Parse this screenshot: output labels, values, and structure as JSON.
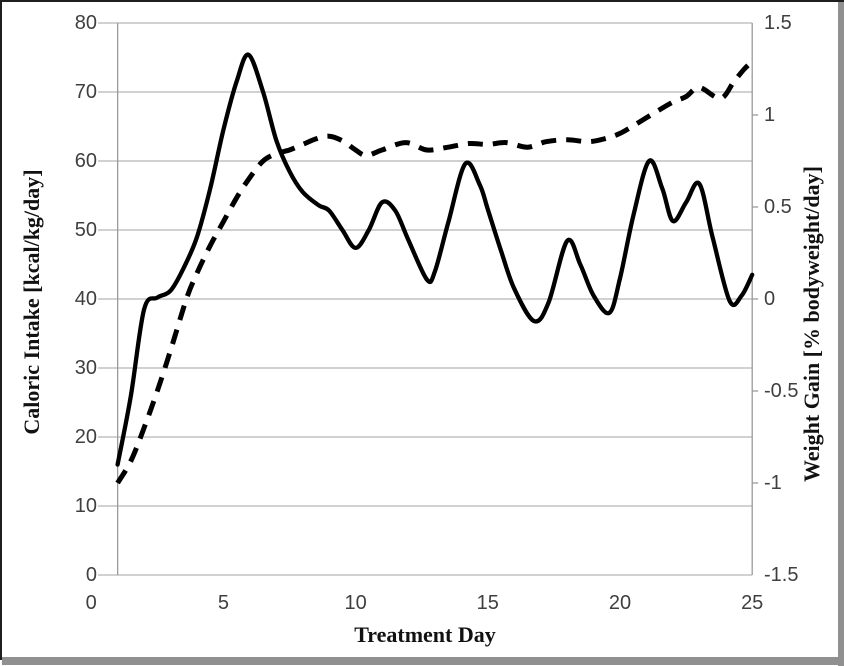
{
  "chart_data": {
    "type": "line",
    "title": "",
    "xlabel": "Treatment Day",
    "x_range": [
      0,
      25
    ],
    "x_ticks": [
      "0",
      "5",
      "10",
      "15",
      "20",
      "25"
    ],
    "x_tick_values": [
      0,
      5,
      10,
      15,
      20,
      25
    ],
    "grid": "horizontal-on",
    "legend": "none",
    "left_axis": {
      "label": "Caloric Intake [kcal/kg/day]",
      "range": [
        0,
        80
      ],
      "ticks": [
        "80",
        "70",
        "60",
        "50",
        "40",
        "30",
        "20",
        "10",
        "0"
      ],
      "tick_values": [
        80,
        70,
        60,
        50,
        40,
        30,
        20,
        10,
        0
      ]
    },
    "right_axis": {
      "label": "Weight Gain [% bodyweight/day]",
      "range": [
        -1.5,
        1.5
      ],
      "ticks": [
        "1.5",
        "1",
        "0.5",
        "0",
        "-0.5",
        "-1",
        "-1.5"
      ],
      "tick_values": [
        1.5,
        1,
        0.5,
        0,
        -0.5,
        -1,
        -1.5
      ]
    },
    "series": [
      {
        "name": "Caloric Intake",
        "axis": "left",
        "style": "solid",
        "color": "#000000",
        "stroke_width": 4.3,
        "points": [
          [
            1,
            16
          ],
          [
            1.5,
            26
          ],
          [
            2,
            38.5
          ],
          [
            2.5,
            40.2
          ],
          [
            3,
            41.2
          ],
          [
            3.5,
            44.5
          ],
          [
            4,
            49
          ],
          [
            4.5,
            56
          ],
          [
            5,
            64.5
          ],
          [
            5.5,
            71.5
          ],
          [
            5.95,
            75.4
          ],
          [
            6.5,
            70
          ],
          [
            7,
            63
          ],
          [
            7.5,
            58.5
          ],
          [
            8,
            55.5
          ],
          [
            8.6,
            53.6
          ],
          [
            9,
            52.8
          ],
          [
            9.5,
            50
          ],
          [
            10,
            47.4
          ],
          [
            10.5,
            50
          ],
          [
            11,
            54
          ],
          [
            11.5,
            52.8
          ],
          [
            12,
            48.5
          ],
          [
            12.7,
            42.8
          ],
          [
            13,
            44
          ],
          [
            13.5,
            51
          ],
          [
            14.15,
            59.6
          ],
          [
            14.7,
            56.5
          ],
          [
            15,
            53
          ],
          [
            15.5,
            47
          ],
          [
            16,
            41.5
          ],
          [
            16.75,
            36.8
          ],
          [
            17.3,
            39.5
          ],
          [
            18,
            48.4
          ],
          [
            18.5,
            45
          ],
          [
            19,
            40.5
          ],
          [
            19.6,
            38
          ],
          [
            20,
            43
          ],
          [
            20.5,
            52
          ],
          [
            21.1,
            60
          ],
          [
            21.6,
            56
          ],
          [
            22,
            51.3
          ],
          [
            22.5,
            54
          ],
          [
            23,
            56.7
          ],
          [
            23.5,
            49
          ],
          [
            24.15,
            39.7
          ],
          [
            24.6,
            40.5
          ],
          [
            25,
            43.5
          ]
        ]
      },
      {
        "name": "Weight Gain",
        "axis": "right",
        "style": "dashed",
        "color": "#000000",
        "stroke_width": 5,
        "dash_pattern": "15 10",
        "points": [
          [
            1,
            -1.0
          ],
          [
            1.5,
            -0.88
          ],
          [
            2,
            -0.7
          ],
          [
            2.5,
            -0.5
          ],
          [
            3,
            -0.28
          ],
          [
            3.6,
            0.0
          ],
          [
            4,
            0.14
          ],
          [
            4.5,
            0.29
          ],
          [
            5,
            0.42
          ],
          [
            5.5,
            0.55
          ],
          [
            6,
            0.66
          ],
          [
            6.5,
            0.75
          ],
          [
            7,
            0.79
          ],
          [
            7.5,
            0.81
          ],
          [
            8,
            0.84
          ],
          [
            8.5,
            0.87
          ],
          [
            9,
            0.885
          ],
          [
            9.5,
            0.86
          ],
          [
            10,
            0.81
          ],
          [
            10.4,
            0.78
          ],
          [
            11,
            0.81
          ],
          [
            11.9,
            0.85
          ],
          [
            12.7,
            0.81
          ],
          [
            13.5,
            0.825
          ],
          [
            14.3,
            0.845
          ],
          [
            15,
            0.84
          ],
          [
            15.7,
            0.85
          ],
          [
            16.5,
            0.825
          ],
          [
            17.2,
            0.855
          ],
          [
            18,
            0.865
          ],
          [
            18.8,
            0.855
          ],
          [
            19.4,
            0.87
          ],
          [
            20,
            0.9
          ],
          [
            20.6,
            0.95
          ],
          [
            21.4,
            1.02
          ],
          [
            22,
            1.07
          ],
          [
            22.5,
            1.1
          ],
          [
            23,
            1.15
          ],
          [
            23.8,
            1.09
          ],
          [
            24.3,
            1.18
          ],
          [
            24.7,
            1.25
          ],
          [
            25,
            1.29
          ]
        ]
      }
    ],
    "colors": {
      "gridline": "#a3a3a3",
      "axis_line": "#9a9a9a",
      "tick_text": "#3f3f3f",
      "title_text": "#111111",
      "frame_dark": "#1f1f1f",
      "frame_gray": "#909090",
      "background": "#ffffff"
    }
  }
}
